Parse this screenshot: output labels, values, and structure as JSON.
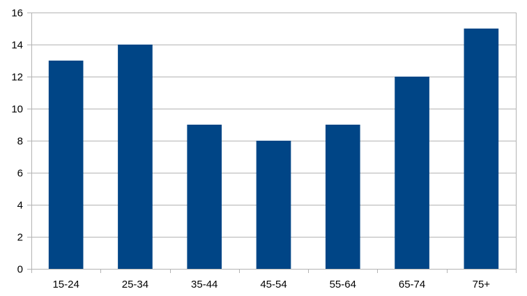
{
  "chart_data": {
    "type": "bar",
    "title": "",
    "xlabel": "",
    "ylabel": "",
    "categories": [
      "15-24",
      "25-34",
      "35-44",
      "45-54",
      "55-64",
      "65-74",
      "75+"
    ],
    "values": [
      13,
      14,
      9,
      8,
      9,
      12,
      15
    ],
    "ylim": [
      0,
      16
    ],
    "yticks": [
      0,
      2,
      4,
      6,
      8,
      10,
      12,
      14,
      16
    ],
    "grid": true,
    "legend": "none",
    "bar_color": "#004586"
  }
}
